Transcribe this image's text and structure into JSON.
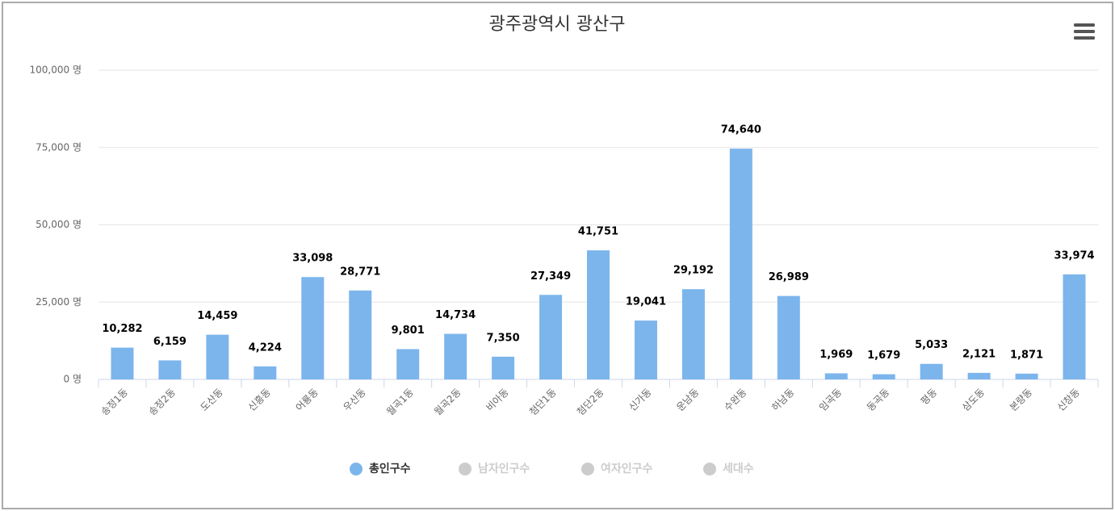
{
  "chart_data": {
    "type": "bar",
    "title": "광주광역시 광산구",
    "categories": [
      "송정1동",
      "송정2동",
      "도산동",
      "신흥동",
      "어룡동",
      "우산동",
      "월곡1동",
      "월곡2동",
      "비아동",
      "첨단1동",
      "첨단2동",
      "신가동",
      "운남동",
      "수완동",
      "하남동",
      "임곡동",
      "동곡동",
      "평동",
      "삼도동",
      "본량동",
      "신창동"
    ],
    "series": [
      {
        "name": "총인구수",
        "color": "#7cb5ec",
        "values": [
          10282,
          6159,
          14459,
          4224,
          33098,
          28771,
          9801,
          14734,
          7350,
          27349,
          41751,
          19041,
          29192,
          74640,
          26989,
          1969,
          1679,
          5033,
          2121,
          1871,
          33974
        ],
        "value_labels": [
          "10,282",
          "6,159",
          "14,459",
          "4,224",
          "33,098",
          "28,771",
          "9,801",
          "14,734",
          "7,350",
          "27,349",
          "41,751",
          "19,041",
          "29,192",
          "74,640",
          "26,989",
          "1,969",
          "1,679",
          "5,033",
          "2,121",
          "1,871",
          "33,974"
        ]
      },
      {
        "name": "남자인구수",
        "visible": false
      },
      {
        "name": "여자인구수",
        "visible": false
      },
      {
        "name": "세대수",
        "visible": false
      }
    ],
    "ylim": [
      0,
      100000
    ],
    "yticks": [
      {
        "value": 0,
        "label": "0 명"
      },
      {
        "value": 25000,
        "label": "25,000 명"
      },
      {
        "value": 50000,
        "label": "50,000 명"
      },
      {
        "value": 75000,
        "label": "75,000 명"
      },
      {
        "value": 100000,
        "label": "100,000 명"
      }
    ],
    "grid": true,
    "legend": "bottom"
  }
}
